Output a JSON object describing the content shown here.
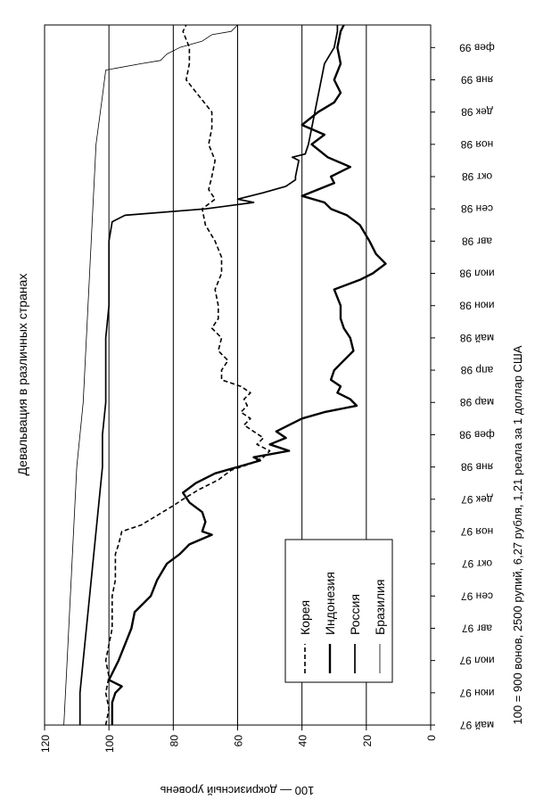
{
  "chart_data": {
    "type": "line",
    "title": "Девальвация в различных странах",
    "ylabel": "100 — докризисный уровень",
    "note": "100 = 900 вонов, 2500 рупий, 6,27 рубля, 1,21 реала за 1 доллар США",
    "orientation": "rotated-90",
    "legend_position": "bottom-center",
    "ylim": [
      0,
      120
    ],
    "yticks": [
      0,
      20,
      40,
      60,
      80,
      100,
      120
    ],
    "grid": true,
    "x_ticks": [
      "май 97",
      "июн 97",
      "июл 97",
      "авг 97",
      "сен 97",
      "окт 97",
      "ноя 97",
      "дек 97",
      "янв 98",
      "фев 98",
      "мар 98",
      "апр 98",
      "май 98",
      "июн 98",
      "июл 98",
      "авг 98",
      "сен 98",
      "окт 98",
      "ноя 98",
      "дек 98",
      "янв 99",
      "фев 99"
    ],
    "xlim": [
      0,
      21.7
    ],
    "series": [
      {
        "name": "Корея",
        "style": "dashed",
        "points": [
          [
            0.0,
            101
          ],
          [
            0.5,
            100
          ],
          [
            1.0,
            101
          ],
          [
            1.5,
            100
          ],
          [
            2.0,
            101
          ],
          [
            2.5,
            100
          ],
          [
            3.0,
            99
          ],
          [
            3.5,
            99
          ],
          [
            4.0,
            99
          ],
          [
            4.5,
            98
          ],
          [
            5.0,
            98
          ],
          [
            5.3,
            98
          ],
          [
            5.6,
            97
          ],
          [
            6.0,
            96
          ],
          [
            6.2,
            90
          ],
          [
            6.5,
            85
          ],
          [
            6.8,
            80
          ],
          [
            7.0,
            77
          ],
          [
            7.3,
            72
          ],
          [
            7.6,
            66
          ],
          [
            7.9,
            62
          ],
          [
            8.1,
            56
          ],
          [
            8.3,
            52
          ],
          [
            8.5,
            50
          ],
          [
            8.7,
            54
          ],
          [
            8.9,
            52
          ],
          [
            9.1,
            55
          ],
          [
            9.3,
            58
          ],
          [
            9.5,
            56
          ],
          [
            9.7,
            59
          ],
          [
            9.9,
            57
          ],
          [
            10.1,
            58
          ],
          [
            10.3,
            56
          ],
          [
            10.5,
            59
          ],
          [
            10.7,
            65
          ],
          [
            11.0,
            65
          ],
          [
            11.3,
            63
          ],
          [
            11.6,
            66
          ],
          [
            12.0,
            65
          ],
          [
            12.3,
            68
          ],
          [
            12.6,
            66
          ],
          [
            13.0,
            66
          ],
          [
            13.5,
            67
          ],
          [
            14.0,
            65
          ],
          [
            14.5,
            65
          ],
          [
            15.0,
            67
          ],
          [
            15.5,
            70
          ],
          [
            16.0,
            71
          ],
          [
            16.3,
            67
          ],
          [
            16.6,
            69
          ],
          [
            17.0,
            68
          ],
          [
            17.5,
            67
          ],
          [
            18.0,
            69
          ],
          [
            18.5,
            68
          ],
          [
            19.0,
            68
          ],
          [
            19.5,
            72
          ],
          [
            20.0,
            76
          ],
          [
            20.5,
            75
          ],
          [
            21.0,
            75
          ],
          [
            21.5,
            77
          ],
          [
            21.7,
            76
          ]
        ]
      },
      {
        "name": "Индонезия",
        "style": "solid-bold",
        "points": [
          [
            0.0,
            99
          ],
          [
            0.7,
            99
          ],
          [
            1.0,
            98
          ],
          [
            1.2,
            96
          ],
          [
            1.4,
            100
          ],
          [
            2.0,
            97
          ],
          [
            2.5,
            95
          ],
          [
            3.0,
            93
          ],
          [
            3.5,
            92
          ],
          [
            4.0,
            87
          ],
          [
            4.5,
            85
          ],
          [
            5.0,
            82
          ],
          [
            5.3,
            78
          ],
          [
            5.6,
            75
          ],
          [
            5.9,
            68
          ],
          [
            6.0,
            71
          ],
          [
            6.3,
            70
          ],
          [
            6.6,
            71
          ],
          [
            6.9,
            75
          ],
          [
            7.2,
            77
          ],
          [
            7.5,
            73
          ],
          [
            7.8,
            67
          ],
          [
            8.0,
            60
          ],
          [
            8.2,
            53
          ],
          [
            8.3,
            55
          ],
          [
            8.5,
            44
          ],
          [
            8.7,
            50
          ],
          [
            8.9,
            45
          ],
          [
            9.1,
            48
          ],
          [
            9.3,
            44
          ],
          [
            9.5,
            40
          ],
          [
            9.7,
            33
          ],
          [
            9.9,
            23
          ],
          [
            10.1,
            25
          ],
          [
            10.3,
            29
          ],
          [
            10.5,
            28
          ],
          [
            10.7,
            31
          ],
          [
            11.0,
            30
          ],
          [
            11.3,
            27
          ],
          [
            11.6,
            24
          ],
          [
            12.0,
            25
          ],
          [
            12.3,
            27
          ],
          [
            12.6,
            28
          ],
          [
            13.0,
            28
          ],
          [
            13.5,
            30
          ],
          [
            13.8,
            22
          ],
          [
            14.0,
            18
          ],
          [
            14.3,
            14
          ],
          [
            14.6,
            17
          ],
          [
            15.0,
            19
          ],
          [
            15.5,
            22
          ],
          [
            15.8,
            26
          ],
          [
            16.0,
            31
          ],
          [
            16.2,
            33
          ],
          [
            16.4,
            40
          ],
          [
            16.6,
            35
          ],
          [
            16.8,
            30
          ],
          [
            17.0,
            31
          ],
          [
            17.3,
            25
          ],
          [
            17.6,
            32
          ],
          [
            18.0,
            37
          ],
          [
            18.3,
            33
          ],
          [
            18.6,
            40
          ],
          [
            19.0,
            35
          ],
          [
            19.3,
            30
          ],
          [
            19.6,
            28
          ],
          [
            20.0,
            30
          ],
          [
            20.5,
            28
          ],
          [
            21.0,
            29
          ],
          [
            21.5,
            28
          ],
          [
            21.7,
            27
          ]
        ]
      },
      {
        "name": "Россия",
        "style": "solid",
        "points": [
          [
            0.0,
            109
          ],
          [
            1.0,
            109
          ],
          [
            2.0,
            108
          ],
          [
            3.0,
            107
          ],
          [
            4.0,
            106
          ],
          [
            5.0,
            105
          ],
          [
            6.0,
            104
          ],
          [
            7.0,
            103
          ],
          [
            8.0,
            102
          ],
          [
            9.0,
            102
          ],
          [
            10.0,
            101
          ],
          [
            11.0,
            101
          ],
          [
            12.0,
            101
          ],
          [
            13.0,
            100
          ],
          [
            14.0,
            100
          ],
          [
            15.0,
            100
          ],
          [
            15.6,
            99
          ],
          [
            15.8,
            95
          ],
          [
            16.0,
            70
          ],
          [
            16.2,
            55
          ],
          [
            16.3,
            60
          ],
          [
            16.5,
            52
          ],
          [
            16.7,
            45
          ],
          [
            16.9,
            42
          ],
          [
            17.0,
            42
          ],
          [
            17.5,
            41
          ],
          [
            17.6,
            43
          ],
          [
            17.7,
            39
          ],
          [
            18.0,
            38
          ],
          [
            18.5,
            37
          ],
          [
            19.0,
            36
          ],
          [
            19.5,
            35
          ],
          [
            20.0,
            34
          ],
          [
            20.5,
            33
          ],
          [
            21.0,
            30
          ],
          [
            21.5,
            29
          ],
          [
            21.7,
            29
          ]
        ]
      },
      {
        "name": "Бразилия",
        "style": "thin",
        "points": [
          [
            0.0,
            114
          ],
          [
            2.0,
            113
          ],
          [
            4.0,
            112
          ],
          [
            6.0,
            111
          ],
          [
            8.0,
            110
          ],
          [
            10.0,
            108
          ],
          [
            12.0,
            107
          ],
          [
            14.0,
            106
          ],
          [
            16.0,
            105
          ],
          [
            18.0,
            104
          ],
          [
            19.5,
            102
          ],
          [
            20.3,
            101
          ],
          [
            20.5,
            90
          ],
          [
            20.6,
            84
          ],
          [
            20.8,
            82
          ],
          [
            21.0,
            78
          ],
          [
            21.2,
            71
          ],
          [
            21.4,
            68
          ],
          [
            21.5,
            62
          ],
          [
            21.7,
            60
          ]
        ]
      }
    ]
  }
}
